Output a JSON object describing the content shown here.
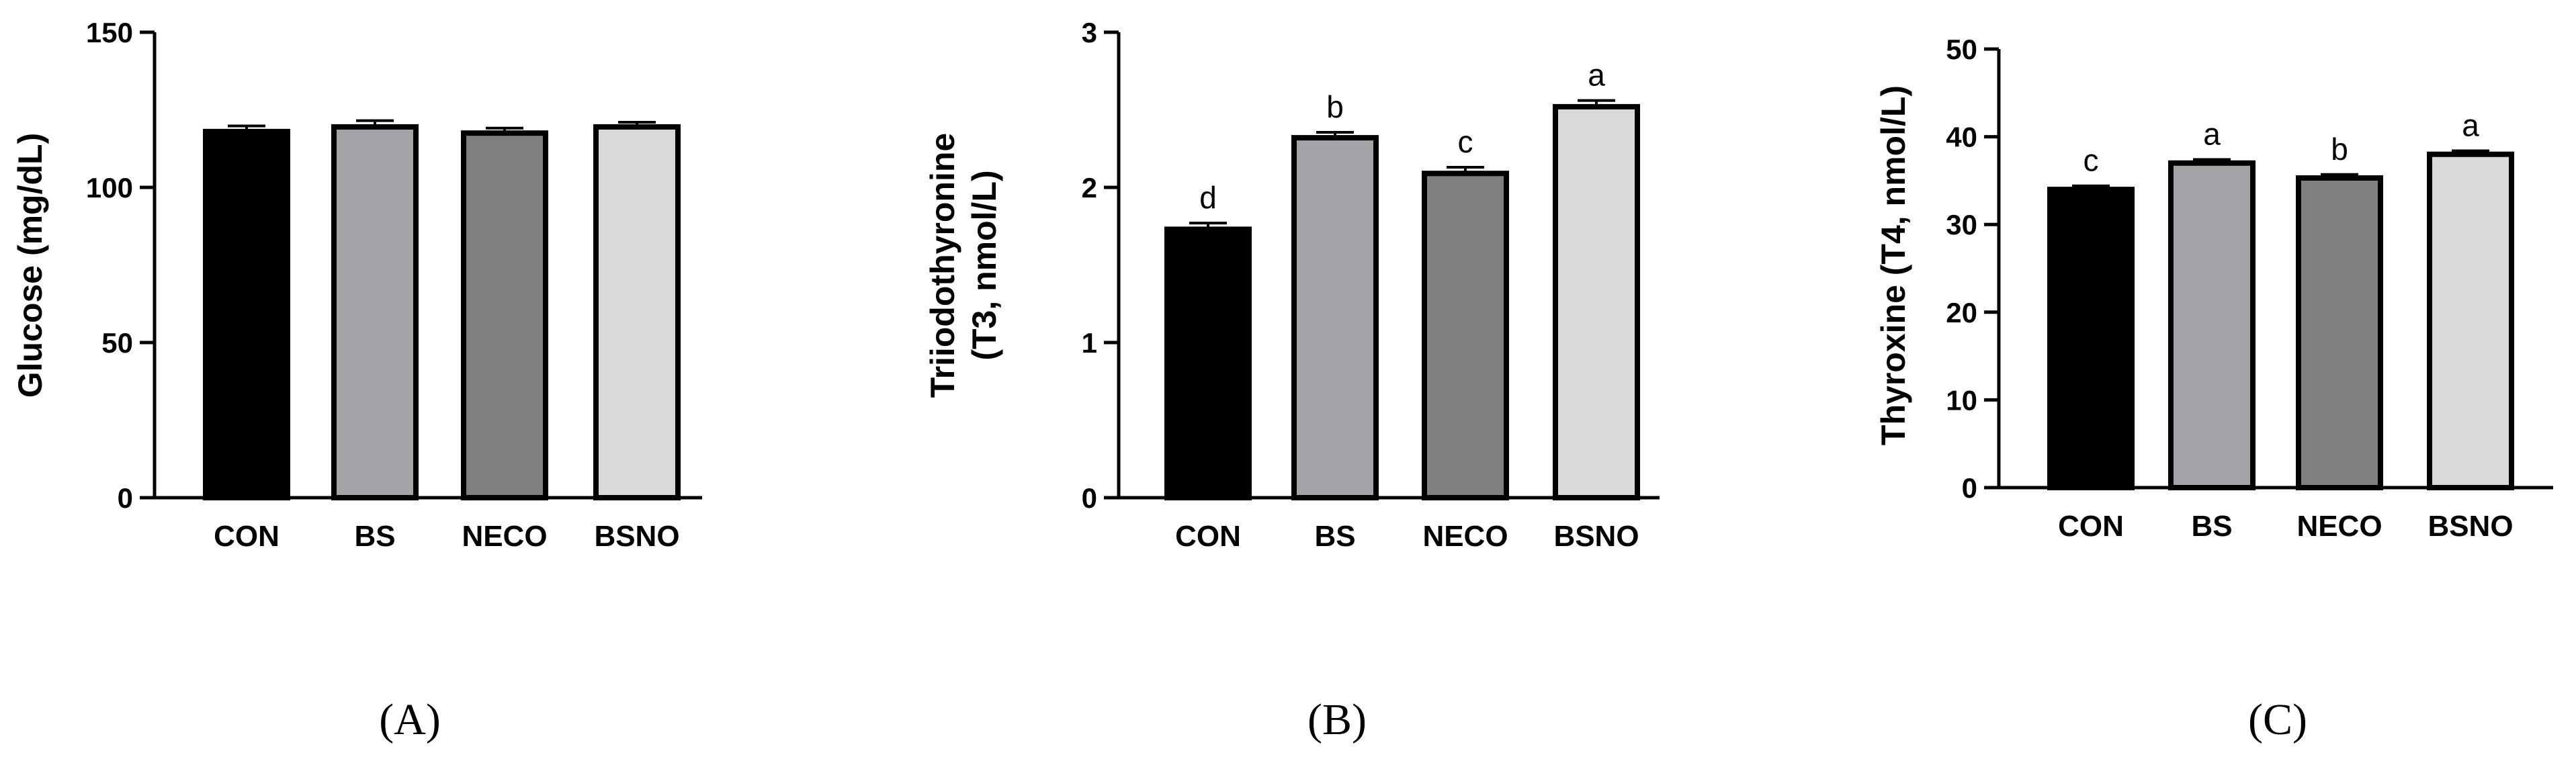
{
  "chart_data": [
    {
      "type": "bar",
      "panel_label": "(A)",
      "categories": [
        "CON",
        "BS",
        "NECO",
        "BSNO"
      ],
      "values": [
        118,
        119.5,
        117.5,
        119.5
      ],
      "errors": [
        1.8,
        2.0,
        1.6,
        1.5
      ],
      "significance": [],
      "ylabel": "Glucose (mg/dL)",
      "ylim": [
        0,
        150
      ],
      "yticks": [
        0,
        50,
        100,
        150
      ],
      "bar_colors": [
        "#000000",
        "#a3a3a8",
        "#7f7f7f",
        "#d9d9d9"
      ],
      "grid": false
    },
    {
      "type": "bar",
      "panel_label": "(B)",
      "categories": [
        "CON",
        "BS",
        "NECO",
        "BSNO"
      ],
      "values": [
        1.73,
        2.32,
        2.09,
        2.52
      ],
      "errors": [
        0.04,
        0.035,
        0.04,
        0.04
      ],
      "significance": [
        "d",
        "b",
        "c",
        "a"
      ],
      "ylabel": "Triiodothyronine (T3, nmol/L)",
      "ylabel_lines": [
        "Triiodothyronine",
        "(T3, nmol/L)"
      ],
      "ylim": [
        0,
        3
      ],
      "yticks": [
        0,
        1,
        2,
        3
      ],
      "bar_colors": [
        "#000000",
        "#a3a3a8",
        "#7f7f7f",
        "#d9d9d9"
      ],
      "grid": false
    },
    {
      "type": "bar",
      "panel_label": "(C)",
      "categories": [
        "CON",
        "BS",
        "NECO",
        "BSNO"
      ],
      "values": [
        34,
        37,
        35.3,
        38
      ],
      "errors": [
        0.4,
        0.4,
        0.4,
        0.4
      ],
      "significance": [
        "c",
        "a",
        "b",
        "a"
      ],
      "ylabel": "Thyroxine (T4, nmol/L)",
      "ylim": [
        0,
        50
      ],
      "yticks": [
        0,
        10,
        20,
        30,
        40,
        50
      ],
      "bar_colors": [
        "#000000",
        "#a3a3a8",
        "#7f7f7f",
        "#d9d9d9"
      ],
      "grid": false
    }
  ]
}
